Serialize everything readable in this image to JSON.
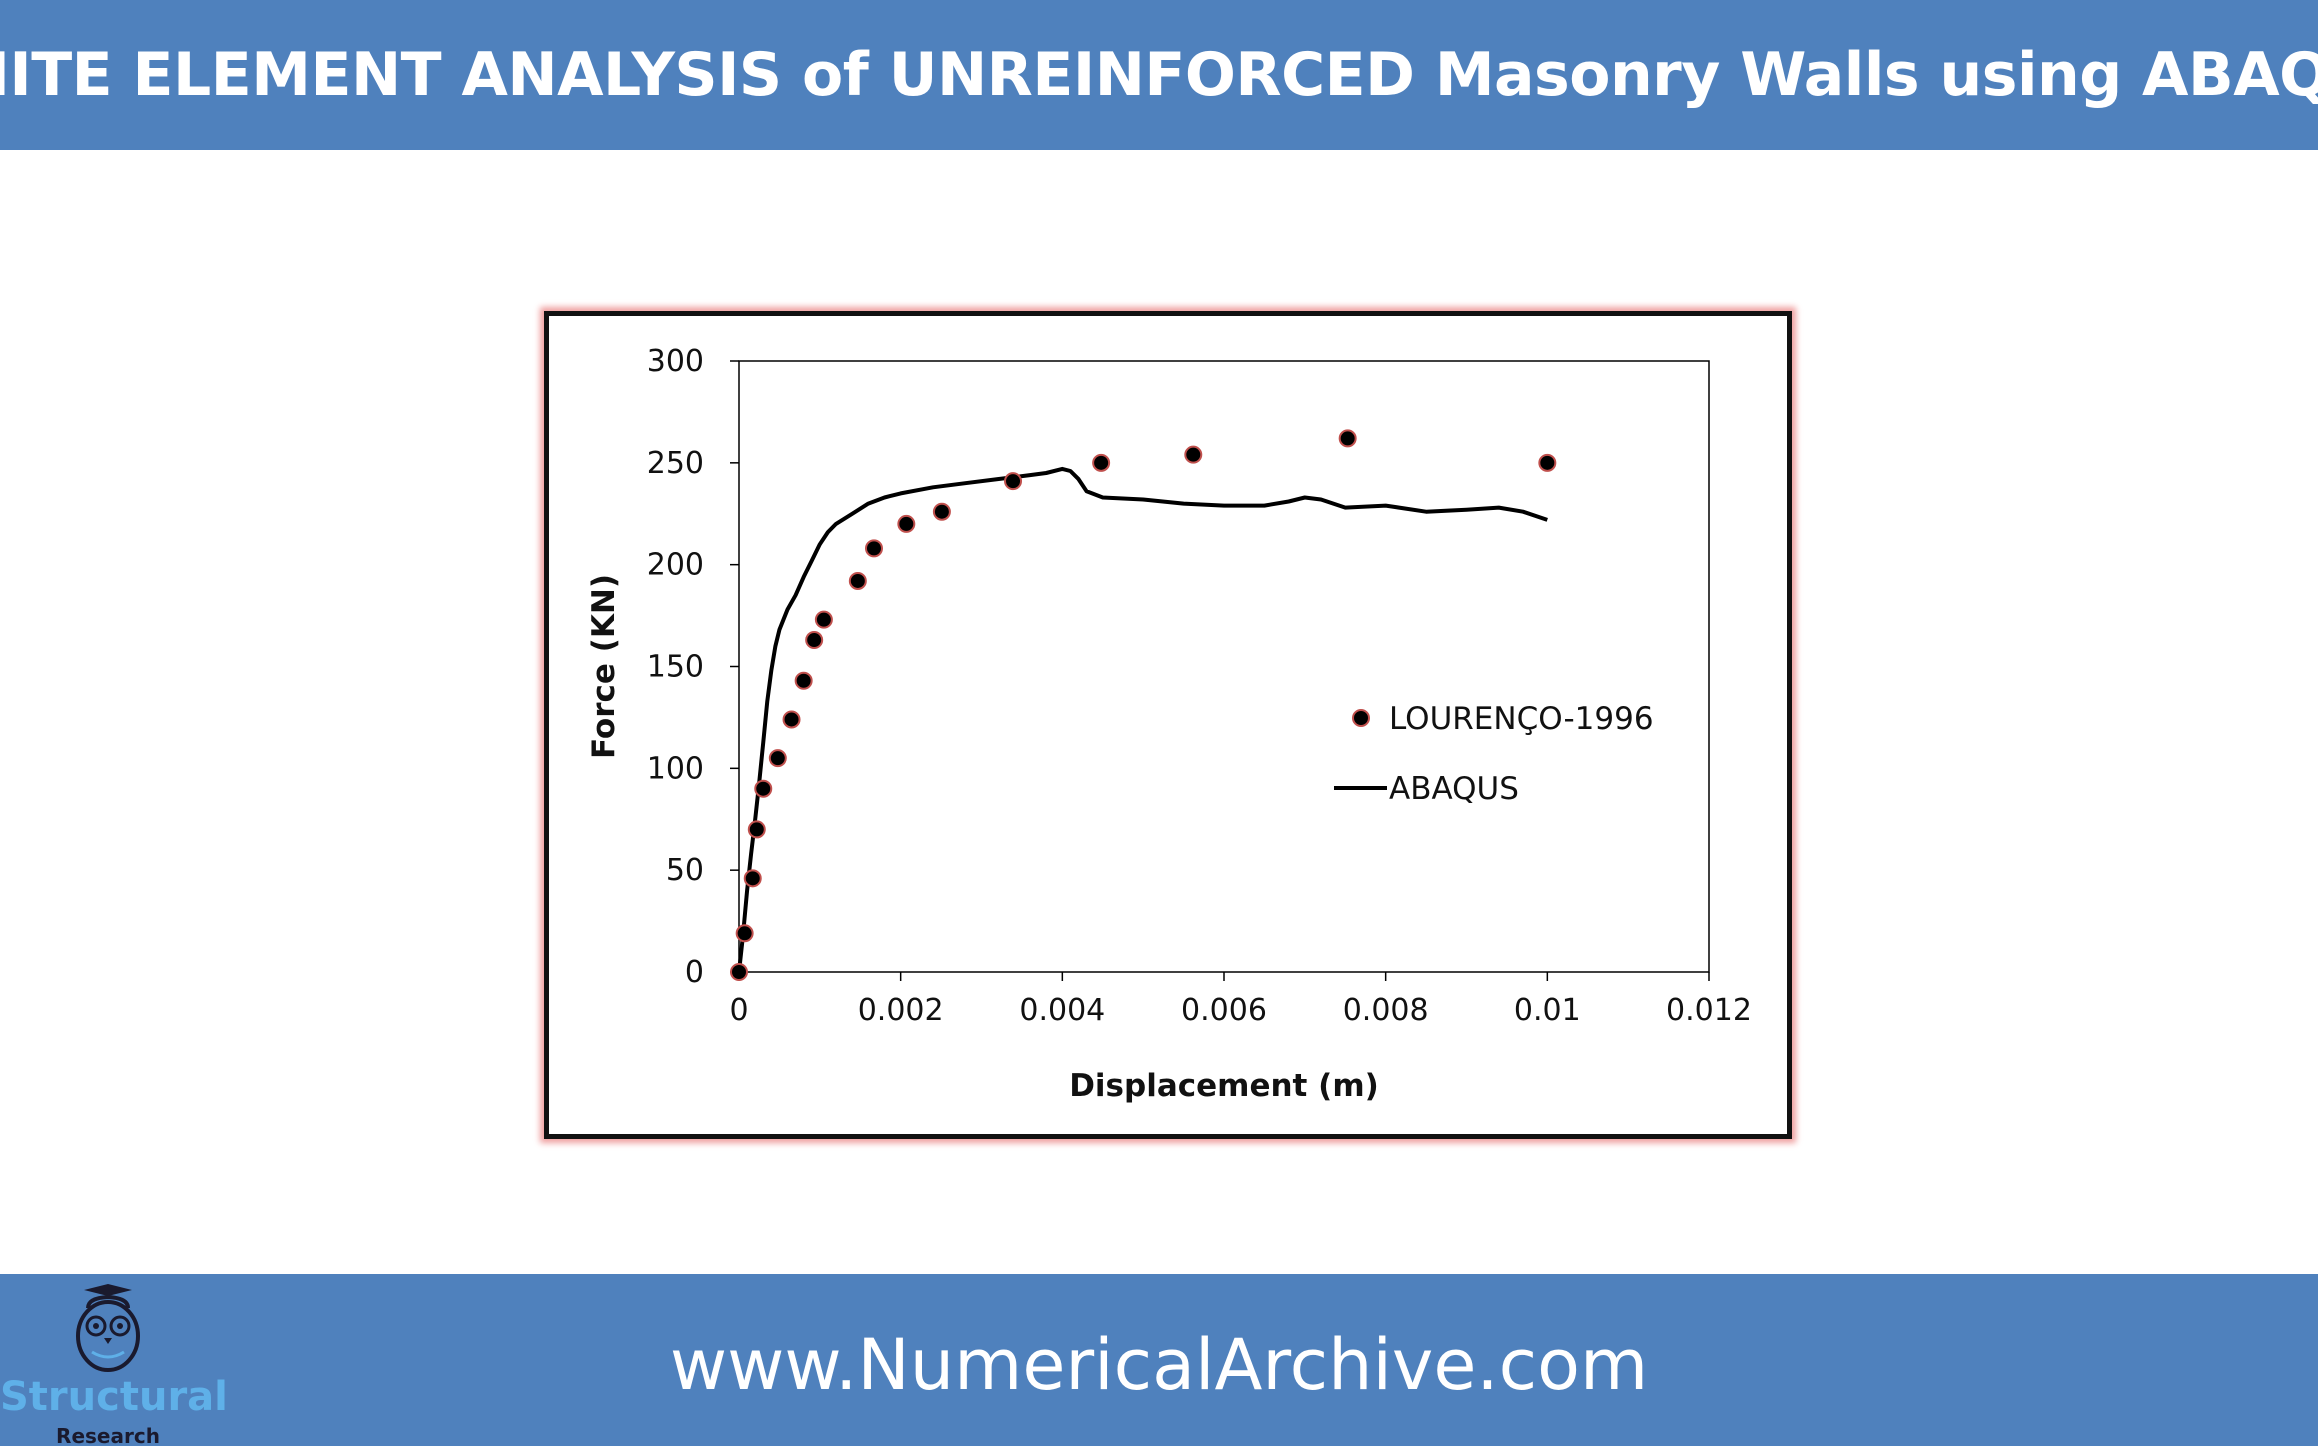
{
  "header": {
    "title": "FINITE ELEMENT ANALYSIS of UNREINFORCED Masonry Walls using ABAQUS"
  },
  "footer": {
    "website": "www.NumericalArchive.com",
    "logo_word": "Structural",
    "logo_sub": "Research"
  },
  "colors": {
    "banner": "#4f81bd",
    "marker_fill": "#000000",
    "marker_edge": "#c0504d",
    "line": "#000000"
  },
  "chart_data": {
    "type": "scatter",
    "xlabel": "Displacement (m)",
    "ylabel": "Force (KN)",
    "xlim": [
      0,
      0.012
    ],
    "ylim": [
      0,
      300
    ],
    "xticks": [
      "0",
      "0.002",
      "0.004",
      "0.006",
      "0.008",
      "0.01",
      "0.012"
    ],
    "yticks": [
      "0",
      "50",
      "100",
      "150",
      "200",
      "250",
      "300"
    ],
    "grid": false,
    "legend": "right",
    "series": [
      {
        "name": "LOURENÇO-1996",
        "kind": "markers",
        "x": [
          0.0,
          7e-05,
          0.00017,
          0.00022,
          0.0003,
          0.00048,
          0.00065,
          0.0008,
          0.00093,
          0.00105,
          0.00147,
          0.00167,
          0.00207,
          0.00251,
          0.00339,
          0.00448,
          0.00562,
          0.00753,
          0.01
        ],
        "y": [
          0,
          19,
          46,
          70,
          90,
          105,
          124,
          143,
          163,
          173,
          192,
          208,
          220,
          226,
          241,
          250,
          254,
          262,
          250
        ]
      },
      {
        "name": "ABAQUS",
        "kind": "line",
        "x": [
          0.0,
          5e-05,
          0.0001,
          0.00015,
          0.0002,
          0.00025,
          0.0003,
          0.00035,
          0.0004,
          0.00045,
          0.0005,
          0.0006,
          0.0007,
          0.0008,
          0.0009,
          0.001,
          0.0011,
          0.0012,
          0.0014,
          0.0016,
          0.0018,
          0.002,
          0.0024,
          0.0028,
          0.0032,
          0.0036,
          0.0038,
          0.004,
          0.0041,
          0.0042,
          0.0043,
          0.0045,
          0.005,
          0.0055,
          0.006,
          0.0065,
          0.0068,
          0.007,
          0.0072,
          0.0075,
          0.008,
          0.0085,
          0.009,
          0.0094,
          0.0097,
          0.01
        ],
        "y": [
          0,
          18,
          40,
          58,
          75,
          93,
          113,
          133,
          148,
          160,
          168,
          178,
          185,
          194,
          202,
          210,
          216,
          220,
          225,
          230,
          233,
          235,
          238,
          240,
          242,
          244,
          245,
          247,
          246,
          242,
          236,
          233,
          232,
          230,
          229,
          229,
          231,
          233,
          232,
          228,
          229,
          226,
          227,
          228,
          226,
          222
        ]
      }
    ]
  }
}
